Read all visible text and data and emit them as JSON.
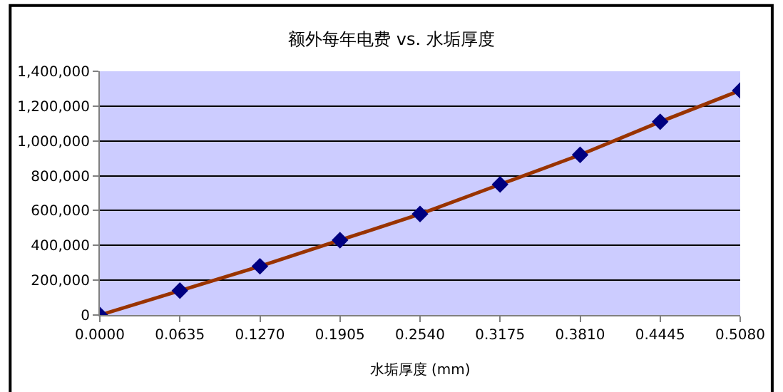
{
  "chart_data": {
    "type": "scatter",
    "title": "额外每年电费 vs. 水垢厚度",
    "xlabel": "水垢厚度 (mm)",
    "x": [
      0,
      0.0635,
      0.127,
      0.1905,
      0.254,
      0.3175,
      0.381,
      0.4445,
      0.508
    ],
    "series": [
      {
        "type": "line",
        "color": "#993300",
        "marker": "none",
        "values": [
          0,
          140000,
          280000,
          430000,
          580000,
          750000,
          920000,
          1110000,
          1290000
        ]
      },
      {
        "color": "#000080",
        "marker": "diamond",
        "values": [
          0,
          140000,
          280000,
          430000,
          580000,
          750000,
          920000,
          1110000,
          1290000
        ]
      }
    ],
    "xlim": [
      0,
      0.508
    ],
    "xticks": [
      {
        "value": 0,
        "label": "0.0000"
      },
      {
        "value": 0.0635,
        "label": "0.0635"
      },
      {
        "value": 0.127,
        "label": "0.1270"
      },
      {
        "value": 0.1905,
        "label": "0.1905"
      },
      {
        "value": 0.254,
        "label": "0.2540"
      },
      {
        "value": 0.3175,
        "label": "0.3175"
      },
      {
        "value": 0.381,
        "label": "0.3810"
      },
      {
        "value": 0.4445,
        "label": "0.4445"
      },
      {
        "value": 0.508,
        "label": "0.5080"
      }
    ],
    "ylim": [
      0,
      1400000
    ],
    "yticks": [
      0,
      {
        "value": 200000,
        "label": "200,000"
      },
      {
        "value": 400000,
        "label": "400,000"
      },
      {
        "value": 600000,
        "label": "600,000"
      },
      {
        "value": 800000,
        "label": "800,000"
      },
      {
        "value": 1000000,
        "label": "1,000,000"
      },
      {
        "value": 1200000,
        "label": "1,200,000"
      },
      {
        "value": 1400000,
        "label": "1,400,000"
      }
    ],
    "grid": "y"
  }
}
